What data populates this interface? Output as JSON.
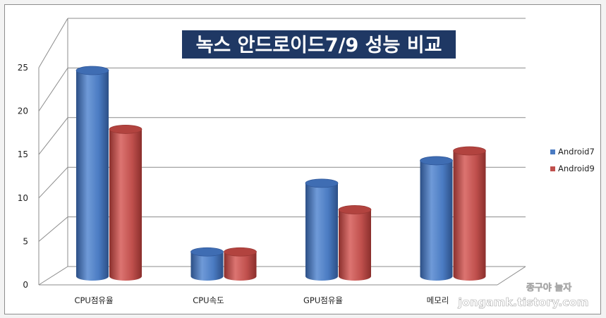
{
  "chart_data": {
    "type": "bar",
    "title": "녹스 안드로이드7/9 성능 비교",
    "categories": [
      "CPU점유율",
      "CPU속도",
      "GPU점유율",
      "메모리"
    ],
    "series": [
      {
        "name": "Android7",
        "values": [
          21,
          2.5,
          9.5,
          11.8
        ],
        "color": "#4a7bc2"
      },
      {
        "name": "Android9",
        "values": [
          15,
          2.5,
          6.8,
          12.8
        ],
        "color": "#c0504d"
      }
    ],
    "ylim": [
      0,
      25
    ],
    "yticks": [
      0,
      5,
      10,
      15,
      20,
      25
    ],
    "grid": true,
    "legend": "right"
  },
  "watermark": {
    "line1": "종구야 놀자",
    "line2": "jongamk.tistory.com"
  },
  "colors": {
    "title_bg": "#1f3864",
    "grid": "#8c8c8c"
  }
}
